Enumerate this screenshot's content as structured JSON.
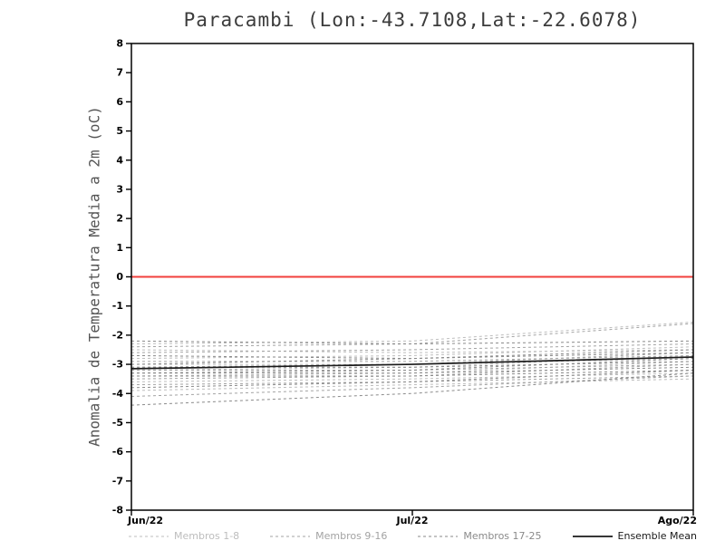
{
  "title": "Paracambi (Lon:-43.7108,Lat:-22.6078)",
  "chart_data": {
    "type": "line",
    "title": "Paracambi (Lon:-43.7108,Lat:-22.6078)",
    "xlabel": "",
    "ylabel": "Anomalia de Temperatura Media a 2m (oC)",
    "x_categories": [
      "Jun/22",
      "Jul/22",
      "Ago/22"
    ],
    "ylim": [
      -8,
      8
    ],
    "ytick_step": 1,
    "grid": false,
    "legend_position": "bottom",
    "zero_line": {
      "value": 0,
      "color": "#f2403c"
    },
    "groups": [
      {
        "name": "Membros 1-8",
        "color": "#bdbdbd",
        "style": "dashed",
        "members": [
          [
            -2.3,
            -2.2,
            -1.55
          ],
          [
            -2.5,
            -2.6,
            -2.5
          ],
          [
            -2.8,
            -2.7,
            -2.4
          ],
          [
            -3.0,
            -3.0,
            -2.8
          ],
          [
            -3.2,
            -3.1,
            -2.7
          ],
          [
            -3.4,
            -3.3,
            -2.9
          ],
          [
            -3.6,
            -3.5,
            -3.3
          ],
          [
            -3.9,
            -3.7,
            -3.5
          ]
        ]
      },
      {
        "name": "Membros 9-16",
        "color": "#a3a3a3",
        "style": "dashed",
        "members": [
          [
            -2.4,
            -2.3,
            -1.6
          ],
          [
            -2.6,
            -2.5,
            -2.3
          ],
          [
            -2.9,
            -2.9,
            -2.7
          ],
          [
            -3.1,
            -3.0,
            -2.6
          ],
          [
            -3.2,
            -3.2,
            -3.0
          ],
          [
            -3.5,
            -3.4,
            -3.0
          ],
          [
            -3.7,
            -3.6,
            -3.4
          ],
          [
            -4.1,
            -3.8,
            -3.4
          ]
        ]
      },
      {
        "name": "Membros 17-25",
        "color": "#8a8a8a",
        "style": "dashed",
        "members": [
          [
            -2.2,
            -2.3,
            -2.2
          ],
          [
            -2.7,
            -2.8,
            -2.6
          ],
          [
            -3.0,
            -2.8,
            -2.5
          ],
          [
            -3.1,
            -3.1,
            -2.9
          ],
          [
            -3.3,
            -3.2,
            -2.8
          ],
          [
            -3.3,
            -3.3,
            -3.1
          ],
          [
            -3.4,
            -3.4,
            -3.2
          ],
          [
            -3.8,
            -3.6,
            -3.2
          ],
          [
            -4.4,
            -4.0,
            -3.3
          ]
        ]
      }
    ],
    "ensemble_mean": {
      "name": "Ensemble Mean",
      "color": "#1a1a1a",
      "style": "solid",
      "values": [
        -3.15,
        -3.0,
        -2.75
      ]
    }
  },
  "colors": {
    "axis": "#000000",
    "title": "#3c3c3c",
    "ylabel": "#555555",
    "tick_label": "#000000"
  }
}
